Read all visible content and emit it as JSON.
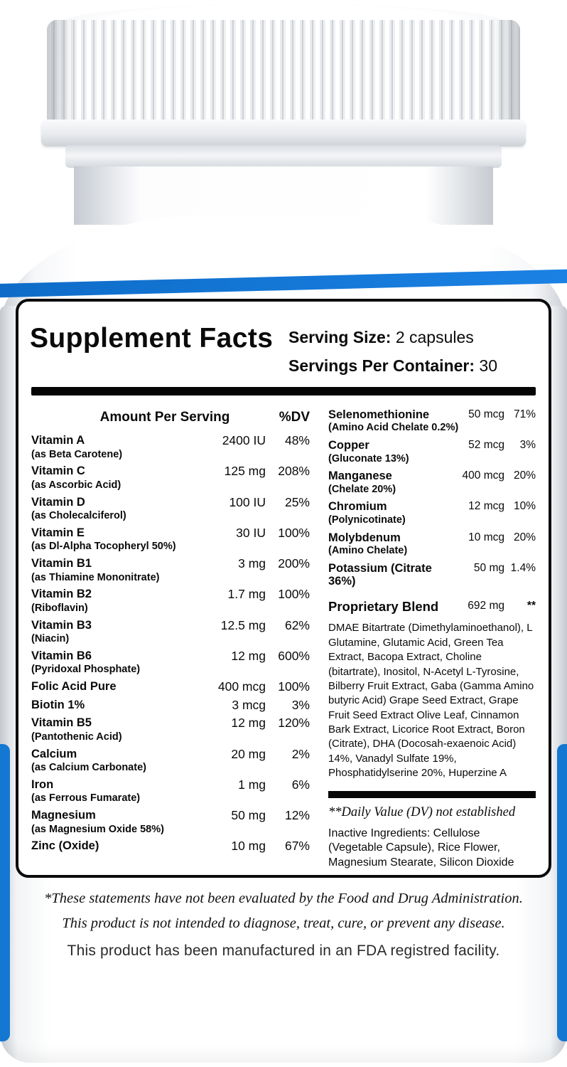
{
  "brand": {
    "accent_blue": "#1478d2"
  },
  "header": {
    "title": "Supplement Facts",
    "serving_size_label": "Serving Size:",
    "serving_size_value": "2 capsules",
    "servings_label": "Servings Per Container:",
    "servings_value": "30"
  },
  "columns": {
    "amount_header": "Amount Per Serving",
    "dv_header": "%DV"
  },
  "left_rows": [
    {
      "name": "Vitamin A",
      "sub": "(as Beta Carotene)",
      "amount": "2400 IU",
      "dv": "48%"
    },
    {
      "name": "Vitamin C",
      "sub": "(as Ascorbic Acid)",
      "amount": "125 mg",
      "dv": "208%"
    },
    {
      "name": "Vitamin D",
      "sub": "(as Cholecalciferol)",
      "amount": "100 IU",
      "dv": "25%"
    },
    {
      "name": "Vitamin E",
      "sub": "(as Dl-Alpha Tocopheryl 50%)",
      "amount": "30 IU",
      "dv": "100%"
    },
    {
      "name": "Vitamin B1",
      "sub": "(as Thiamine Mononitrate)",
      "amount": "3 mg",
      "dv": "200%"
    },
    {
      "name": "Vitamin B2",
      "sub": "(Riboflavin)",
      "amount": "1.7 mg",
      "dv": "100%"
    },
    {
      "name": "Vitamin B3",
      "sub": "(Niacin)",
      "amount": "12.5 mg",
      "dv": "62%"
    },
    {
      "name": "Vitamin B6",
      "sub": "(Pyridoxal Phosphate)",
      "amount": "12 mg",
      "dv": "600%"
    },
    {
      "name": "Folic Acid Pure",
      "sub": "",
      "amount": "400 mcg",
      "dv": "100%"
    },
    {
      "name": "Biotin 1%",
      "sub": "",
      "amount": "3 mcg",
      "dv": "3%"
    },
    {
      "name": "Vitamin B5",
      "sub": "(Pantothenic Acid)",
      "amount": "12 mg",
      "dv": "120%"
    },
    {
      "name": "Calcium",
      "sub": "(as Calcium Carbonate)",
      "amount": "20 mg",
      "dv": "2%"
    },
    {
      "name": "Iron",
      "sub": "(as Ferrous Fumarate)",
      "amount": "1 mg",
      "dv": "6%"
    },
    {
      "name": "Magnesium",
      "sub": "(as Magnesium Oxide 58%)",
      "amount": "50 mg",
      "dv": "12%"
    },
    {
      "name": "Zinc (Oxide)",
      "sub": "",
      "amount": "10 mg",
      "dv": "67%"
    }
  ],
  "right_rows": [
    {
      "name": "Selenomethionine",
      "sub": "(Amino Acid Chelate 0.2%)",
      "amount": "50 mcg",
      "dv": "71%"
    },
    {
      "name": "Copper",
      "sub": "(Gluconate 13%)",
      "amount": "52 mcg",
      "dv": "3%"
    },
    {
      "name": "Manganese",
      "sub": "(Chelate 20%)",
      "amount": "400 mcg",
      "dv": "20%"
    },
    {
      "name": "Chromium",
      "sub": "(Polynicotinate)",
      "amount": "12 mcg",
      "dv": "10%"
    },
    {
      "name": "Molybdenum",
      "sub": "(Amino Chelate)",
      "amount": "10 mcg",
      "dv": "20%"
    },
    {
      "name": "Potassium (Citrate 36%)",
      "sub": "",
      "amount": "50 mg",
      "dv": "1.4%"
    }
  ],
  "blend": {
    "name": "Proprietary Blend",
    "amount": "692 mg",
    "dv": "**",
    "ingredients": "DMAE Bitartrate (Dimethylaminoethanol), L Glutamine, Glutamic Acid, Green Tea Extract, Bacopa Extract, Choline (bitartrate), Inositol, N-Acetyl L-Tyrosine, Bilberry Fruit Extract, Gaba (Gamma Amino butyric Acid) Grape Seed Extract, Grape Fruit Seed Extract Olive Leaf, Cinnamon Bark Extract, Licorice Root Extract, Boron (Citrate), DHA (Docosah-exaenoic Acid) 14%, Vanadyl Sulfate 19%, Phosphatidylserine 20%, Huperzine A"
  },
  "footnotes": {
    "dv_note": "**Daily Value (DV) not established",
    "inactive": "Inactive Ingredients: Cellulose (Vegetable Capsule), Rice Flower, Magnesium Stearate, Silicon Dioxide"
  },
  "disclaimer": {
    "line1": "*These statements have not been evaluated by the Food and Drug Administration.",
    "line2": "This product is not intended to diagnose, treat, cure, or prevent any disease.",
    "line3": "This product has been manufactured in an FDA registred facility."
  }
}
